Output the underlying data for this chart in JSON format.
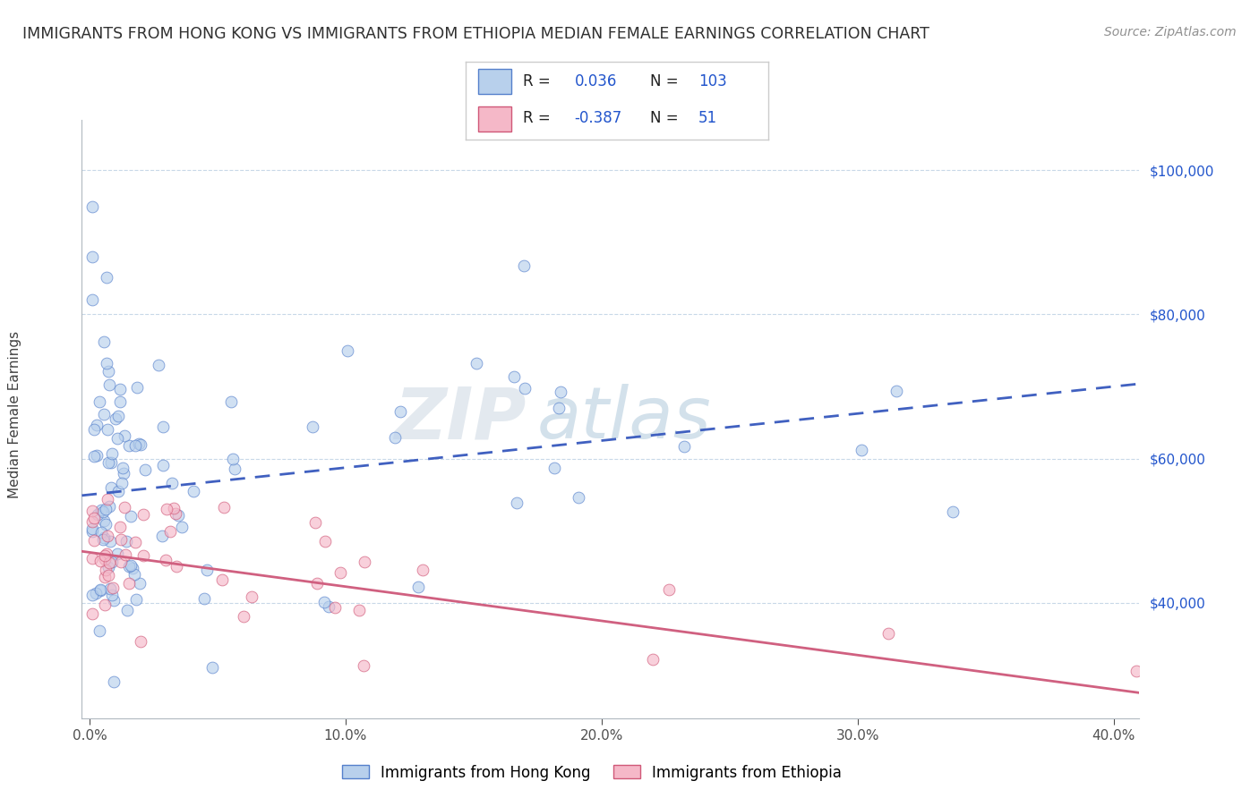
{
  "title": "IMMIGRANTS FROM HONG KONG VS IMMIGRANTS FROM ETHIOPIA MEDIAN FEMALE EARNINGS CORRELATION CHART",
  "source": "Source: ZipAtlas.com",
  "ylabel": "Median Female Earnings",
  "ytick_labels": [
    "$40,000",
    "$60,000",
    "$80,000",
    "$100,000"
  ],
  "ytick_vals": [
    40000,
    60000,
    80000,
    100000
  ],
  "xtick_labels": [
    "0.0%",
    "10.0%",
    "20.0%",
    "30.0%",
    "40.0%"
  ],
  "xtick_vals": [
    0.0,
    10.0,
    20.0,
    30.0,
    40.0
  ],
  "ylim": [
    24000,
    107000
  ],
  "xlim": [
    -0.3,
    41.0
  ],
  "hk_R": 0.036,
  "hk_N": 103,
  "eth_R": -0.387,
  "eth_N": 51,
  "color_hk_face": "#b8d0ec",
  "color_hk_edge": "#5580cc",
  "color_eth_face": "#f5b8c8",
  "color_eth_edge": "#d05878",
  "line_color_hk": "#4060c0",
  "line_color_eth": "#d06080",
  "watermark_zip": "ZIP",
  "watermark_atlas": "atlas",
  "watermark_color_zip": "#c8d4e0",
  "watermark_color_atlas": "#a8c4d8",
  "background_color": "#ffffff",
  "grid_color": "#c8d8e8",
  "title_color": "#303030",
  "source_color": "#909090",
  "legend_val_color": "#2255cc",
  "marker_size": 85,
  "marker_alpha": 0.65,
  "hk_trend_x0": 0,
  "hk_trend_y0": 55000,
  "hk_trend_x1": 40,
  "hk_trend_y1": 70000,
  "eth_trend_x0": 0,
  "eth_trend_y0": 47000,
  "eth_trend_x1": 40,
  "eth_trend_y1": 28000
}
